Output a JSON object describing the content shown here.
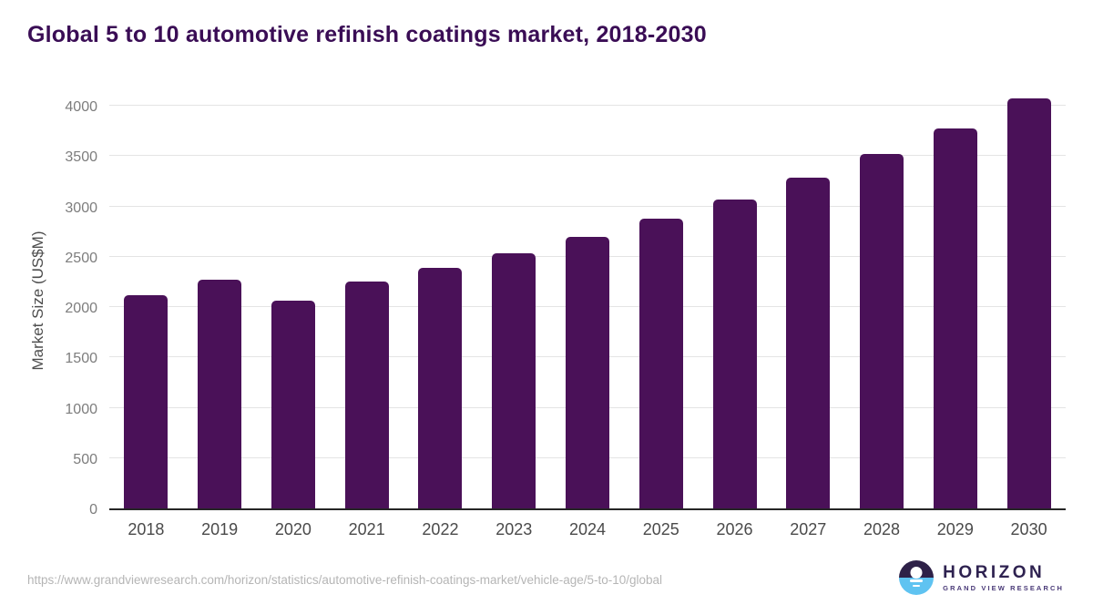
{
  "chart_data": {
    "type": "bar",
    "title": "Global 5 to 10 automotive refinish coatings market, 2018-2030",
    "categories": [
      "2018",
      "2019",
      "2020",
      "2021",
      "2022",
      "2023",
      "2024",
      "2025",
      "2026",
      "2027",
      "2028",
      "2029",
      "2030"
    ],
    "values": [
      2120,
      2270,
      2065,
      2255,
      2390,
      2535,
      2700,
      2875,
      3070,
      3285,
      3520,
      3770,
      4070
    ],
    "xlabel": "",
    "ylabel": "Market Size (US$M)",
    "ylim": [
      0,
      4000
    ],
    "yticks": [
      0,
      500,
      1000,
      1500,
      2000,
      2500,
      3000,
      3500,
      4000
    ],
    "grid": true,
    "legend": "none",
    "bar_color": "#4a1158"
  },
  "footer": {
    "source_url": "https://www.grandviewresearch.com/horizon/statistics/automotive-refinish-coatings-market/vehicle-age/5-to-10/global",
    "logo": {
      "wordmark": "HORIZON",
      "subtitle": "GRAND VIEW RESEARCH"
    }
  },
  "colors": {
    "title": "#3a0d55",
    "bar": "#4a1158",
    "axis_line": "#262626",
    "gridline": "#e4e4e4",
    "y_tick_label": "#7d7d7d",
    "x_tick_label": "#4a4a4a",
    "y_axis_title": "#4d4d4d",
    "source_url": "#b5b5b5",
    "logo_dark": "#2e2148",
    "logo_blue": "#5fc3f1"
  }
}
